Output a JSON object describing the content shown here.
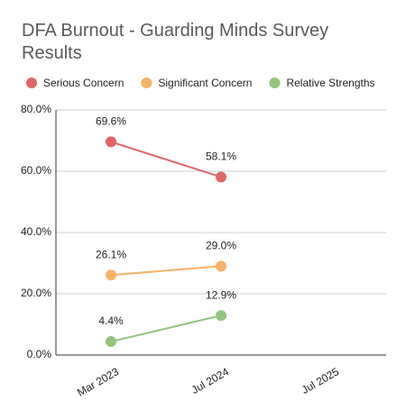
{
  "chart_data": {
    "type": "line",
    "title": "DFA Burnout - Guarding Minds Survey Results",
    "categories": [
      "Mar 2023",
      "Jul 2024",
      "Jul 2025"
    ],
    "series": [
      {
        "name": "Serious Concern",
        "color": "#e06666",
        "label_color": "#c0392b",
        "values": [
          69.6,
          58.1,
          null
        ],
        "value_labels": [
          "69.6%",
          "58.1%",
          null
        ]
      },
      {
        "name": "Significant Concern",
        "color": "#f6b26b",
        "label_color": "#b7791f",
        "values": [
          26.1,
          29.0,
          null
        ],
        "value_labels": [
          "26.1%",
          "29.0%",
          null
        ]
      },
      {
        "name": "Relative Strengths",
        "color": "#93c47d",
        "label_color": "#93c47d",
        "values": [
          4.4,
          12.9,
          null
        ],
        "value_labels": [
          "4.4%",
          "12.9%",
          null
        ]
      }
    ],
    "ylim": [
      0,
      80
    ],
    "yticks": [
      {
        "value": 0,
        "label": "0.0%"
      },
      {
        "value": 20,
        "label": "20.0%"
      },
      {
        "value": 40,
        "label": "40.0%"
      },
      {
        "value": 60,
        "label": "60.0%"
      },
      {
        "value": 80,
        "label": "80.0%"
      }
    ],
    "grid": true,
    "legend": "top"
  }
}
